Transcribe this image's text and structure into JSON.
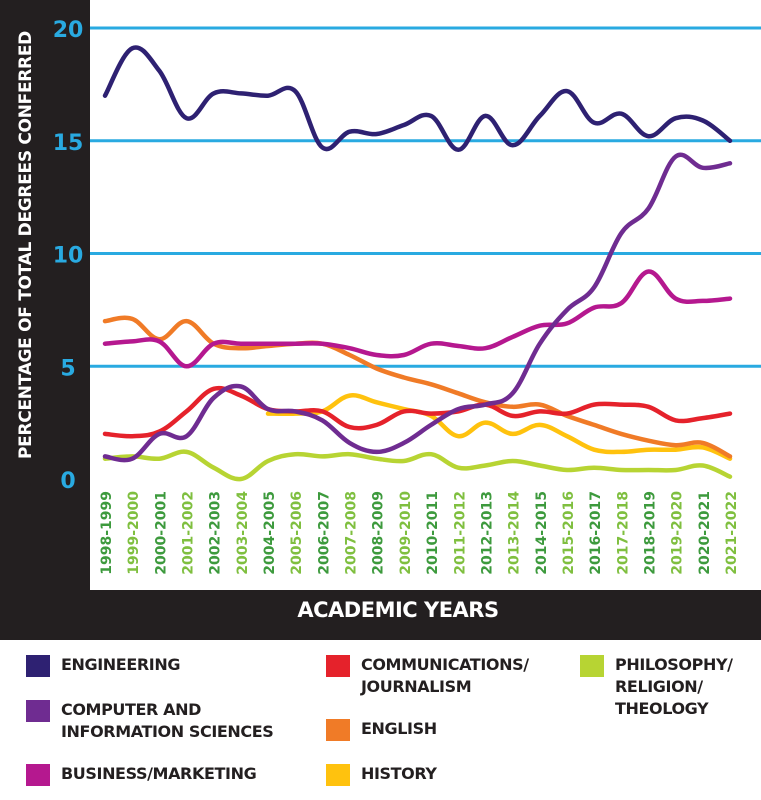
{
  "chart_data": {
    "type": "line",
    "ylabel": "PERCENTAGE OF TOTAL DEGREES CONFERRED",
    "xlabel": "ACADEMIC YEARS",
    "ylim": [
      0,
      20
    ],
    "yticks": [
      "0",
      "5",
      "10",
      "15",
      "20"
    ],
    "grid": true,
    "legend_position": "bottom",
    "categories": [
      "1998-1999",
      "1999-2000",
      "2000-2001",
      "2001-2002",
      "2002-2003",
      "2003-2004",
      "2004-2005",
      "2005-2006",
      "2006-2007",
      "2007-2008",
      "2008-2009",
      "2009-2010",
      "2010-2011",
      "2011-2012",
      "2012-2013",
      "2013-2014",
      "2014-2015",
      "2015-2016",
      "2016-2017",
      "2017-2018",
      "2018-2019",
      "2019-2020",
      "2020-2021",
      "2021-2022"
    ],
    "series": [
      {
        "name": "ENGINEERING",
        "color": "#2e2172",
        "values": [
          17.0,
          19.1,
          18.1,
          16.0,
          17.1,
          17.1,
          17.0,
          17.2,
          14.7,
          15.4,
          15.3,
          15.7,
          16.1,
          14.6,
          16.1,
          14.8,
          16.1,
          17.2,
          15.8,
          16.2,
          15.2,
          16.0,
          15.9,
          15.0
        ]
      },
      {
        "name": "COMPUTER AND\nINFORMATION SCIENCES",
        "color": "#6f2c91",
        "values": [
          1.0,
          0.9,
          2.0,
          1.9,
          3.6,
          4.1,
          3.1,
          3.0,
          2.6,
          1.6,
          1.2,
          1.6,
          2.4,
          3.1,
          3.3,
          3.8,
          6.0,
          7.5,
          8.5,
          10.9,
          12.0,
          14.3,
          13.8,
          14.0
        ]
      },
      {
        "name": "BUSINESS/MARKETING",
        "color": "#b5188f",
        "values": [
          6.0,
          6.1,
          6.1,
          5.0,
          6.0,
          6.0,
          6.0,
          6.0,
          6.0,
          5.8,
          5.5,
          5.5,
          6.0,
          5.9,
          5.8,
          6.3,
          6.8,
          6.9,
          7.6,
          7.8,
          9.2,
          8.0,
          7.9,
          8.0
        ]
      },
      {
        "name": "COMMUNICATIONS/\nJOURNALISM",
        "color": "#e5222b",
        "values": [
          2.0,
          1.9,
          2.1,
          3.0,
          4.0,
          3.7,
          3.1,
          3.0,
          3.0,
          2.3,
          2.4,
          3.0,
          2.9,
          3.0,
          3.3,
          2.8,
          3.0,
          2.9,
          3.3,
          3.3,
          3.2,
          2.6,
          2.7,
          2.9
        ]
      },
      {
        "name": "ENGLISH",
        "color": "#f07b27",
        "values": [
          7.0,
          7.1,
          6.2,
          7.0,
          6.0,
          5.8,
          5.9,
          6.0,
          6.0,
          5.5,
          4.9,
          4.5,
          4.2,
          3.8,
          3.4,
          3.2,
          3.3,
          2.8,
          2.4,
          2.0,
          1.7,
          1.5,
          1.6,
          1.0
        ]
      },
      {
        "name": "HISTORY",
        "color": "#ffc20e",
        "values": [
          null,
          null,
          null,
          null,
          null,
          null,
          2.9,
          2.9,
          3.0,
          3.7,
          3.4,
          3.1,
          2.8,
          1.9,
          2.5,
          2.0,
          2.4,
          1.9,
          1.3,
          1.2,
          1.3,
          1.3,
          1.4,
          0.9
        ]
      },
      {
        "name": "PHILOSOPHY/\nRELIGION/\nTHEOLOGY",
        "color": "#b7d433",
        "values": [
          0.9,
          1.0,
          0.9,
          1.2,
          0.5,
          0.0,
          0.8,
          1.1,
          1.0,
          1.1,
          0.9,
          0.8,
          1.1,
          0.5,
          0.6,
          0.8,
          0.6,
          0.4,
          0.5,
          0.4,
          0.4,
          0.4,
          0.6,
          0.1
        ]
      }
    ]
  }
}
